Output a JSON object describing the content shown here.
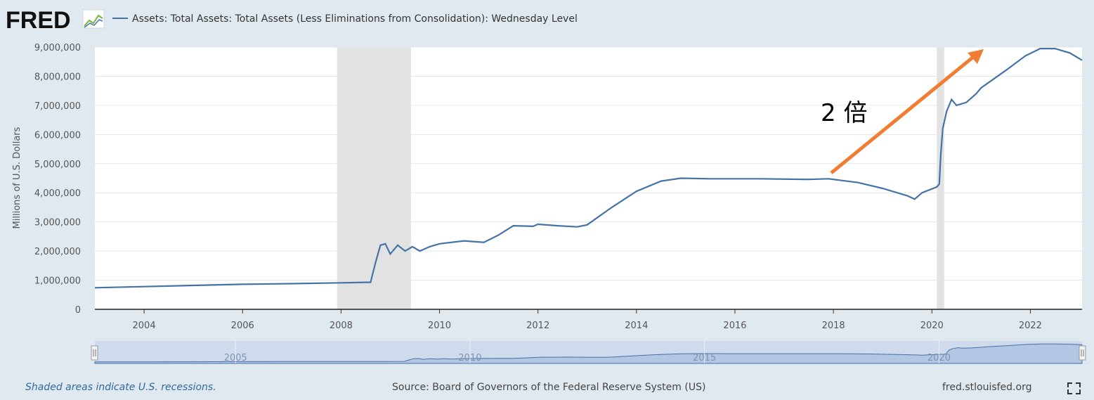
{
  "header": {
    "logo_text": "FRED",
    "legend_label": "Assets: Total Assets: Total Assets (Less Eliminations from Consolidation): Wednesday Level"
  },
  "footer": {
    "recession_note": "Shaded areas indicate U.S. recessions.",
    "source": "Source: Board of Governors of the Federal Reserve System (US)",
    "site": "fred.stlouisfed.org"
  },
  "colors": {
    "series": "#4572a7",
    "recession": "#e2e2e2",
    "arrow": "#f07d32",
    "navigator_fill": "#b3c6e3"
  },
  "annotation": {
    "text": "2 倍"
  },
  "navigator": {
    "tick_labels": [
      "2005",
      "2010",
      "2015",
      "2020"
    ],
    "tick_years": [
      2005,
      2010,
      2015,
      2020
    ]
  },
  "chart_data": {
    "type": "line",
    "title": "Assets: Total Assets: Total Assets (Less Eliminations from Consolidation): Wednesday Level",
    "xlabel": "",
    "ylabel": "Millions of U.S. Dollars",
    "xlim": [
      2003.0,
      2023.05
    ],
    "ylim": [
      0,
      9000000
    ],
    "x_ticks": [
      2004,
      2006,
      2008,
      2010,
      2012,
      2014,
      2016,
      2018,
      2020,
      2022
    ],
    "x_tick_labels": [
      "2004",
      "2006",
      "2008",
      "2010",
      "2012",
      "2014",
      "2016",
      "2018",
      "2020",
      "2022"
    ],
    "y_ticks": [
      0,
      1000000,
      2000000,
      3000000,
      4000000,
      5000000,
      6000000,
      7000000,
      8000000,
      9000000
    ],
    "y_tick_labels": [
      "0",
      "1,000,000",
      "2,000,000",
      "3,000,000",
      "4,000,000",
      "5,000,000",
      "6,000,000",
      "7,000,000",
      "8,000,000",
      "9,000,000"
    ],
    "recessions": [
      [
        2007.92,
        2009.42
      ],
      [
        2020.1,
        2020.25
      ]
    ],
    "grid": true,
    "series": [
      {
        "name": "Assets: Total Assets: Total Assets (Less Eliminations from Consolidation): Wednesday Level",
        "x": [
          2003.0,
          2004.0,
          2005.0,
          2006.0,
          2007.0,
          2008.0,
          2008.6,
          2008.7,
          2008.8,
          2008.9,
          2009.0,
          2009.15,
          2009.3,
          2009.45,
          2009.6,
          2009.8,
          2010.0,
          2010.5,
          2010.9,
          2011.2,
          2011.5,
          2011.9,
          2012.0,
          2012.4,
          2012.8,
          2013.0,
          2013.5,
          2014.0,
          2014.5,
          2014.9,
          2015.5,
          2016.5,
          2017.5,
          2017.9,
          2018.5,
          2019.0,
          2019.5,
          2019.65,
          2019.8,
          2020.1,
          2020.15,
          2020.18,
          2020.22,
          2020.3,
          2020.4,
          2020.5,
          2020.7,
          2020.9,
          2021.0,
          2021.5,
          2021.9,
          2022.2,
          2022.5,
          2022.8,
          2023.05
        ],
        "values": [
          740000,
          780000,
          820000,
          860000,
          880000,
          910000,
          930000,
          1600000,
          2200000,
          2250000,
          1900000,
          2200000,
          2000000,
          2150000,
          2000000,
          2150000,
          2250000,
          2350000,
          2300000,
          2550000,
          2870000,
          2850000,
          2920000,
          2870000,
          2830000,
          2900000,
          3500000,
          4050000,
          4400000,
          4500000,
          4480000,
          4480000,
          4460000,
          4480000,
          4350000,
          4150000,
          3900000,
          3780000,
          4000000,
          4200000,
          4300000,
          5300000,
          6200000,
          6800000,
          7200000,
          7000000,
          7100000,
          7400000,
          7600000,
          8200000,
          8700000,
          8950000,
          8950000,
          8800000,
          8550000
        ]
      }
    ]
  }
}
